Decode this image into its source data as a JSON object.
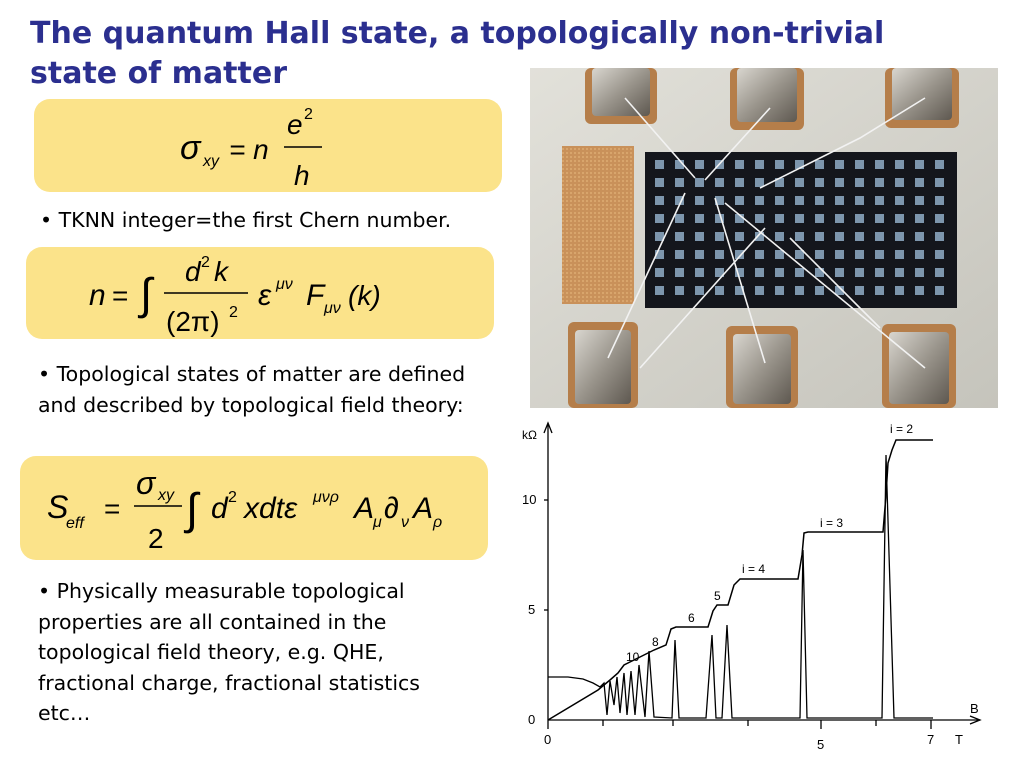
{
  "slide": {
    "title": "The quantum Hall state, a topologically non-trivial state of matter",
    "bullets": [
      "• TKNN integer=the first Chern number.",
      "• Topological states of matter are defined and described by topological field theory:",
      "• Physically measurable topological properties are all contained in the topological field theory, e.g. QHE, fractional charge, fractional statistics etc…"
    ],
    "colors": {
      "title": "#2b2f8f",
      "formula_box": "#fbe38a"
    }
  },
  "formulas": {
    "f1": {
      "lhs": "σ",
      "lhs_sub": "xy",
      "eq": "= n",
      "num": "e",
      "num_sup": "2",
      "den": "h"
    },
    "f2": {
      "lhs": "n",
      "eq": "=",
      "integral": "∫",
      "num": "d",
      "num_sup": "2",
      "num_k": "k",
      "den": "(2π)",
      "den_sup": "2",
      "eps": "ε",
      "eps_sup": "μν",
      "F": "F",
      "F_sub": "μν",
      "arg": "(k)"
    },
    "f3": {
      "S": "S",
      "S_sub": "eff",
      "eq": "=",
      "num": "σ",
      "num_sub": "xy",
      "den": "2",
      "integral": "∫",
      "d": "d",
      "d_sup": "2",
      "xdt": "xdtε",
      "eps_sup": "μνρ",
      "A1": "A",
      "A1_sub": "μ",
      "partial": "∂",
      "partial_sub": "ν",
      "A2": "A",
      "A2_sub": "ρ"
    }
  },
  "figure": {
    "y_unit": "kΩ",
    "y_ticks": [
      "0",
      "5",
      "10"
    ],
    "x_ticks": [
      "0",
      "5",
      "7"
    ],
    "x_label_B": "B",
    "x_label_T": "T",
    "plateau_labels": [
      "i = 2",
      "i = 3",
      "i = 4",
      "5",
      "6",
      "8",
      "10"
    ]
  }
}
